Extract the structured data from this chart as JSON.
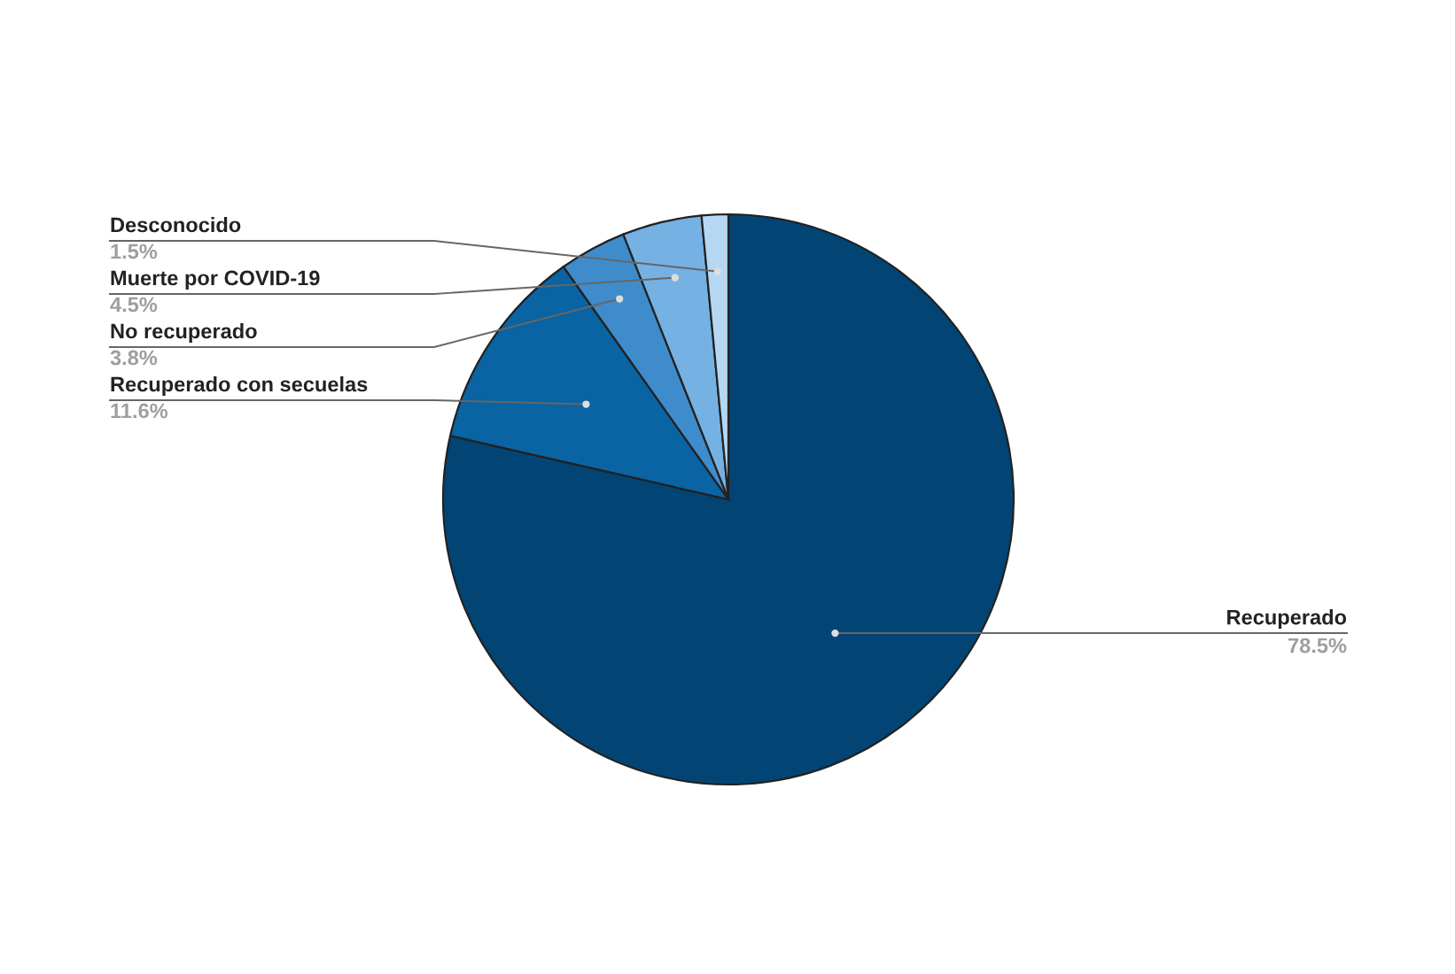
{
  "chart_data": {
    "type": "pie",
    "categories": [
      "Recuperado",
      "Recuperado con secuelas",
      "No recuperado",
      "Muerte por COVID-19",
      "Desconocido"
    ],
    "values": [
      78.5,
      11.6,
      3.8,
      4.5,
      1.5
    ],
    "value_labels": [
      "78.5%",
      "11.6%",
      "3.8%",
      "4.5%",
      "1.5%"
    ],
    "colors": [
      "#024575",
      "#0a63a3",
      "#3f8ccc",
      "#76b1e3",
      "#b5d7f3"
    ],
    "legend": false
  }
}
